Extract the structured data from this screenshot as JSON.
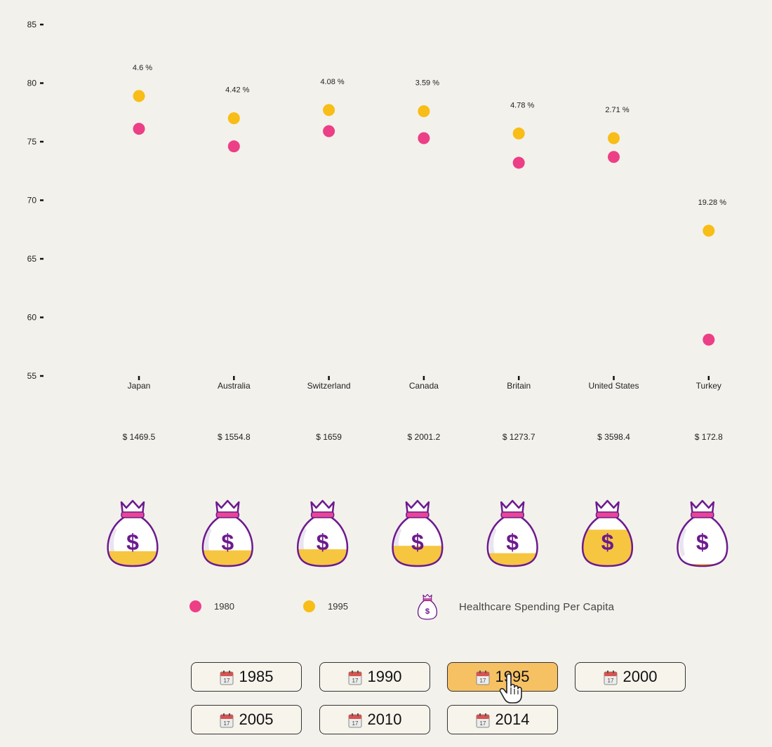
{
  "chart_data": {
    "type": "dumbbell",
    "y_ticks": [
      55,
      60,
      65,
      70,
      75,
      80,
      85
    ],
    "ylim": [
      55,
      85
    ],
    "countries": [
      {
        "name": "Japan",
        "v1980": 76.1,
        "v1995": 78.9,
        "pct": "4.6 %",
        "spending": "$ 1469.5",
        "spending_value": 1469.5
      },
      {
        "name": "Australia",
        "v1980": 74.6,
        "v1995": 77.0,
        "pct": "4.42 %",
        "spending": "$ 1554.8",
        "spending_value": 1554.8
      },
      {
        "name": "Switzerland",
        "v1980": 75.9,
        "v1995": 77.7,
        "pct": "4.08 %",
        "spending": "$ 1659",
        "spending_value": 1659
      },
      {
        "name": "Canada",
        "v1980": 75.3,
        "v1995": 77.6,
        "pct": "3.59 %",
        "spending": "$ 2001.2",
        "spending_value": 2001.2
      },
      {
        "name": "Britain",
        "v1980": 73.2,
        "v1995": 75.7,
        "pct": "4.78 %",
        "spending": "$ 1273.7",
        "spending_value": 1273.7
      },
      {
        "name": "United States",
        "v1980": 73.7,
        "v1995": 75.3,
        "pct": "2.71 %",
        "spending": "$ 3598.4",
        "spending_value": 3598.4
      },
      {
        "name": "Turkey",
        "v1980": 58.1,
        "v1995": 67.4,
        "pct": "19.28 %",
        "spending": "$ 172.8",
        "spending_value": 172.8
      }
    ],
    "series": [
      {
        "name": "1980",
        "color": "#ec3f86"
      },
      {
        "name": "1995",
        "color": "#f8bd16"
      }
    ],
    "bag_fill_color": "#f6c640",
    "bag_outline_color": "#6c1a8e",
    "bag_knot_color": "#e94596"
  },
  "legend": {
    "series1": "1980",
    "series2": "1995",
    "spending": "Healthcare Spending Per Capita"
  },
  "year_buttons": [
    {
      "label": "1985",
      "active": false
    },
    {
      "label": "1990",
      "active": false
    },
    {
      "label": "1995",
      "active": true
    },
    {
      "label": "2000",
      "active": false
    },
    {
      "label": "2005",
      "active": false
    },
    {
      "label": "2010",
      "active": false
    },
    {
      "label": "2014",
      "active": false
    }
  ],
  "icons": {
    "calendar": "calendar-icon",
    "cursor": "hand-pointer-icon",
    "money_bag": "money-bag-icon"
  }
}
